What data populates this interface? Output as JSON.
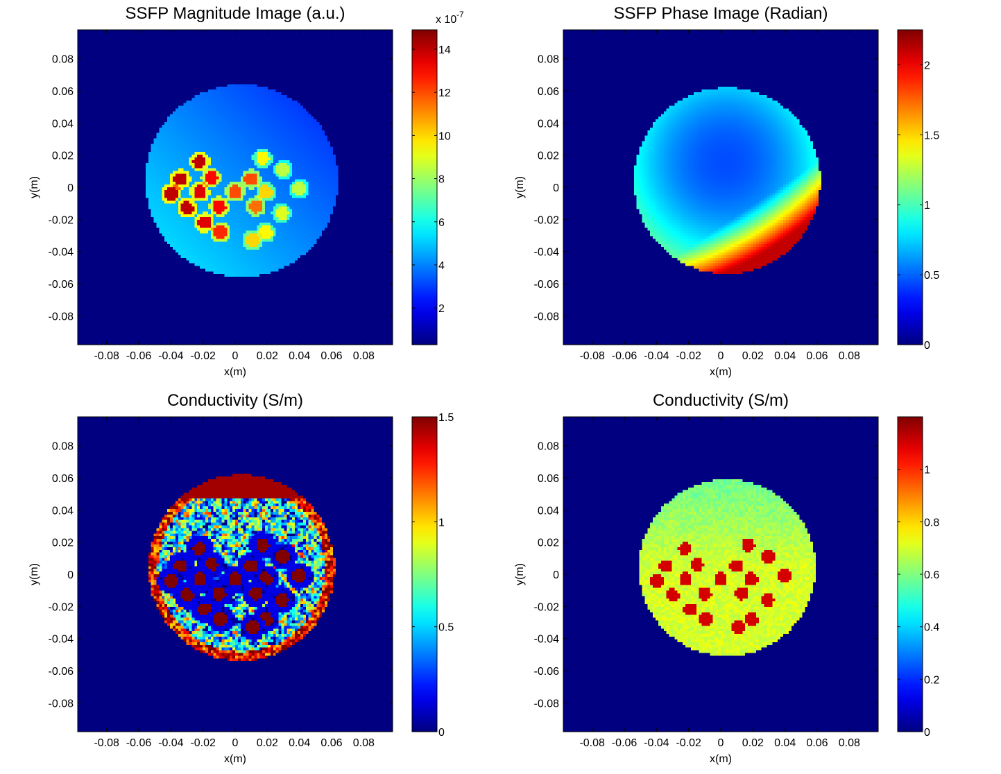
{
  "chart_data": [
    {
      "type": "heatmap",
      "title": "SSFP Magnitude Image (a.u.)",
      "xlabel": "x(m)",
      "ylabel": "y(m)",
      "xlim": [
        -0.098,
        0.098
      ],
      "ylim": [
        -0.098,
        0.098
      ],
      "xticks": [
        "-0.08",
        "-0.06",
        "-0.04",
        "-0.02",
        "0",
        "0.02",
        "0.04",
        "0.06",
        "0.08"
      ],
      "yticks": [
        "0.08",
        "0.06",
        "0.04",
        "0.02",
        "0",
        "-0.02",
        "-0.04",
        "-0.06",
        "-0.08"
      ],
      "colormap": "jet",
      "colorbar": {
        "min": 0.3,
        "max": 14.9,
        "ticks": [
          "2",
          "4",
          "6",
          "8",
          "10",
          "12",
          "14"
        ],
        "tick_values": [
          2,
          4,
          6,
          8,
          10,
          12,
          14
        ],
        "exponent_label": "x 10",
        "exponent": "-7"
      },
      "phantom": {
        "center": [
          0.004,
          0.004
        ],
        "radius": 0.06,
        "base_value": 3.6,
        "gradient": "brighter toward lower-left"
      },
      "inclusions": [
        {
          "x": -0.022,
          "y": 0.016,
          "value": 14.0
        },
        {
          "x": -0.034,
          "y": 0.005,
          "value": 14.0
        },
        {
          "x": -0.015,
          "y": 0.006,
          "value": 13.0
        },
        {
          "x": -0.04,
          "y": -0.004,
          "value": 14.0
        },
        {
          "x": -0.022,
          "y": -0.003,
          "value": 13.5
        },
        {
          "x": 0.0,
          "y": -0.003,
          "value": 12.0
        },
        {
          "x": -0.03,
          "y": -0.013,
          "value": 14.0
        },
        {
          "x": -0.01,
          "y": -0.012,
          "value": 13.0
        },
        {
          "x": -0.019,
          "y": -0.022,
          "value": 13.5
        },
        {
          "x": -0.009,
          "y": -0.028,
          "value": 12.5
        },
        {
          "x": 0.01,
          "y": 0.005,
          "value": 12.0
        },
        {
          "x": 0.017,
          "y": 0.018,
          "value": 9.5
        },
        {
          "x": 0.019,
          "y": -0.003,
          "value": 10.0
        },
        {
          "x": 0.013,
          "y": -0.012,
          "value": 11.5
        },
        {
          "x": 0.03,
          "y": 0.011,
          "value": 8.5
        },
        {
          "x": 0.04,
          "y": -0.001,
          "value": 8.5
        },
        {
          "x": 0.029,
          "y": -0.016,
          "value": 9.0
        },
        {
          "x": 0.019,
          "y": -0.028,
          "value": 9.5
        },
        {
          "x": 0.011,
          "y": -0.033,
          "value": 10.0
        }
      ]
    },
    {
      "type": "heatmap",
      "title": "SSFP Phase Image (Radian)",
      "xlabel": "x(m)",
      "ylabel": "y(m)",
      "xlim": [
        -0.098,
        0.098
      ],
      "ylim": [
        -0.098,
        0.098
      ],
      "xticks": [
        "-0.08",
        "-0.06",
        "-0.04",
        "-0.02",
        "0",
        "0.02",
        "0.04",
        "0.06",
        "0.08"
      ],
      "yticks": [
        "0.08",
        "0.06",
        "0.04",
        "0.02",
        "0",
        "-0.02",
        "-0.04",
        "-0.06",
        "-0.08"
      ],
      "colormap": "jet",
      "colorbar": {
        "min": 0.0,
        "max": 2.25,
        "ticks": [
          "0",
          "0.5",
          "1",
          "1.5",
          "2"
        ],
        "tick_values": [
          0,
          0.5,
          1,
          1.5,
          2
        ]
      },
      "phantom": {
        "center": [
          0.004,
          0.004
        ],
        "radius": 0.058,
        "min_value": 0.45,
        "min_location": [
          0.003,
          0.016
        ],
        "max_value": 2.1,
        "gradient": "rises toward lower-right edge"
      }
    },
    {
      "type": "heatmap",
      "title": "Conductivity (S/m)",
      "xlabel": "x(m)",
      "ylabel": "y(m)",
      "xlim": [
        -0.098,
        0.098
      ],
      "ylim": [
        -0.098,
        0.098
      ],
      "xticks": [
        "-0.08",
        "-0.06",
        "-0.04",
        "-0.02",
        "0",
        "0.02",
        "0.04",
        "0.06",
        "0.08"
      ],
      "yticks": [
        "0.08",
        "0.06",
        "0.04",
        "0.02",
        "0",
        "-0.02",
        "-0.04",
        "-0.06",
        "-0.08"
      ],
      "colormap": "jet",
      "colorbar": {
        "min": 0.0,
        "max": 1.5,
        "ticks": [
          "0",
          "0.5",
          "1",
          "1.5"
        ],
        "tick_values": [
          0,
          0.5,
          1,
          1.5
        ]
      },
      "phantom": {
        "center": [
          0.004,
          0.004
        ],
        "radius": 0.058,
        "base_value": 0.55,
        "texture": "noisy",
        "edge_value": 1.3
      },
      "inclusions": [
        {
          "x": -0.022,
          "y": 0.016,
          "value": 1.5
        },
        {
          "x": -0.034,
          "y": 0.005,
          "value": 1.5
        },
        {
          "x": -0.015,
          "y": 0.006,
          "value": 1.5
        },
        {
          "x": -0.04,
          "y": -0.004,
          "value": 1.5
        },
        {
          "x": -0.022,
          "y": -0.003,
          "value": 1.5
        },
        {
          "x": 0.0,
          "y": -0.003,
          "value": 1.5
        },
        {
          "x": -0.03,
          "y": -0.013,
          "value": 1.5
        },
        {
          "x": -0.01,
          "y": -0.012,
          "value": 1.5
        },
        {
          "x": -0.019,
          "y": -0.022,
          "value": 1.5
        },
        {
          "x": -0.009,
          "y": -0.028,
          "value": 1.5
        },
        {
          "x": 0.01,
          "y": 0.005,
          "value": 1.5
        },
        {
          "x": 0.017,
          "y": 0.018,
          "value": 1.5
        },
        {
          "x": 0.019,
          "y": -0.003,
          "value": 1.5
        },
        {
          "x": 0.013,
          "y": -0.012,
          "value": 1.5
        },
        {
          "x": 0.03,
          "y": 0.011,
          "value": 1.5
        },
        {
          "x": 0.04,
          "y": -0.001,
          "value": 1.5
        },
        {
          "x": 0.029,
          "y": -0.016,
          "value": 1.5
        },
        {
          "x": 0.019,
          "y": -0.028,
          "value": 1.5
        },
        {
          "x": 0.011,
          "y": -0.033,
          "value": 1.5
        }
      ]
    },
    {
      "type": "heatmap",
      "title": "Conductivity (S/m)",
      "xlabel": "x(m)",
      "ylabel": "y(m)",
      "xlim": [
        -0.098,
        0.098
      ],
      "ylim": [
        -0.098,
        0.098
      ],
      "xticks": [
        "-0.08",
        "-0.06",
        "-0.04",
        "-0.02",
        "0",
        "0.02",
        "0.04",
        "0.06",
        "0.08"
      ],
      "yticks": [
        "0.08",
        "0.06",
        "0.04",
        "0.02",
        "0",
        "-0.02",
        "-0.04",
        "-0.06",
        "-0.08"
      ],
      "colormap": "jet",
      "colorbar": {
        "min": 0.0,
        "max": 1.2,
        "ticks": [
          "0",
          "0.2",
          "0.4",
          "0.6",
          "0.8",
          "1"
        ],
        "tick_values": [
          0,
          0.2,
          0.4,
          0.6,
          0.8,
          1
        ]
      },
      "phantom": {
        "center": [
          0.004,
          0.004
        ],
        "radius": 0.055,
        "base_value": 0.7,
        "texture": "smooth"
      },
      "inclusions": [
        {
          "x": -0.022,
          "y": 0.016,
          "value": 1.1
        },
        {
          "x": -0.034,
          "y": 0.005,
          "value": 1.1
        },
        {
          "x": -0.015,
          "y": 0.006,
          "value": 1.1
        },
        {
          "x": -0.04,
          "y": -0.004,
          "value": 1.1
        },
        {
          "x": -0.022,
          "y": -0.003,
          "value": 1.1
        },
        {
          "x": 0.0,
          "y": -0.003,
          "value": 1.1
        },
        {
          "x": -0.03,
          "y": -0.013,
          "value": 1.1
        },
        {
          "x": -0.01,
          "y": -0.012,
          "value": 1.1
        },
        {
          "x": -0.019,
          "y": -0.022,
          "value": 1.1
        },
        {
          "x": -0.009,
          "y": -0.028,
          "value": 1.1
        },
        {
          "x": 0.01,
          "y": 0.005,
          "value": 1.1
        },
        {
          "x": 0.017,
          "y": 0.018,
          "value": 1.1
        },
        {
          "x": 0.019,
          "y": -0.003,
          "value": 1.1
        },
        {
          "x": 0.013,
          "y": -0.012,
          "value": 1.1
        },
        {
          "x": 0.03,
          "y": 0.011,
          "value": 1.1
        },
        {
          "x": 0.04,
          "y": -0.001,
          "value": 1.1
        },
        {
          "x": 0.029,
          "y": -0.016,
          "value": 1.1
        },
        {
          "x": 0.019,
          "y": -0.028,
          "value": 1.1
        },
        {
          "x": 0.011,
          "y": -0.033,
          "value": 1.1
        }
      ]
    }
  ]
}
